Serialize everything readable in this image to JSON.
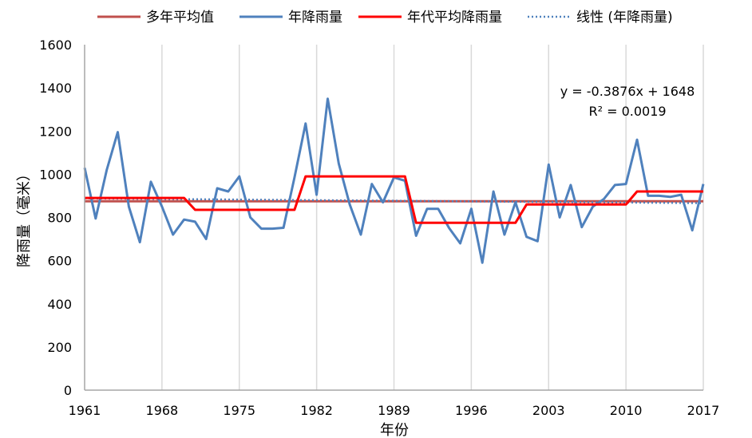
{
  "chart_data": {
    "type": "line",
    "xlabel": "年份",
    "ylabel": "降雨量（毫米）",
    "xlim": [
      1961,
      2017
    ],
    "ylim": [
      0,
      1600
    ],
    "x_ticks": [
      "1961",
      "1968",
      "1975",
      "1982",
      "1989",
      "1996",
      "2003",
      "2010",
      "2017"
    ],
    "y_ticks": [
      "0",
      "200",
      "400",
      "600",
      "800",
      "1000",
      "1200",
      "1400",
      "1600"
    ],
    "grid": "vertical",
    "legend_position": "top",
    "colors": {
      "average": "#C0504D",
      "annual": "#4F81BD",
      "decadal": "#FF0000",
      "trend": "#4F81BD"
    },
    "series": [
      {
        "key": "average",
        "name": "多年平均值",
        "style": "solid",
        "x": [
          1961,
          2017
        ],
        "values": [
          875,
          875
        ]
      },
      {
        "key": "annual",
        "name": "年降雨量",
        "style": "solid",
        "x": [
          1961,
          1962,
          1963,
          1964,
          1965,
          1966,
          1967,
          1968,
          1969,
          1970,
          1971,
          1972,
          1973,
          1974,
          1975,
          1976,
          1977,
          1978,
          1979,
          1980,
          1981,
          1982,
          1983,
          1984,
          1985,
          1986,
          1987,
          1988,
          1989,
          1990,
          1991,
          1992,
          1993,
          1994,
          1995,
          1996,
          1997,
          1998,
          1999,
          2000,
          2001,
          2002,
          2003,
          2004,
          2005,
          2006,
          2007,
          2008,
          2009,
          2010,
          2011,
          2012,
          2013,
          2014,
          2015,
          2016,
          2017
        ],
        "values": [
          1030,
          795,
          1020,
          1195,
          850,
          685,
          965,
          850,
          720,
          790,
          780,
          700,
          935,
          920,
          990,
          800,
          748,
          748,
          752,
          985,
          1235,
          905,
          1350,
          1050,
          860,
          720,
          955,
          870,
          985,
          970,
          715,
          840,
          840,
          750,
          680,
          840,
          590,
          920,
          720,
          870,
          710,
          690,
          1045,
          800,
          950,
          755,
          850,
          885,
          950,
          955,
          1160,
          900,
          900,
          895,
          905,
          740,
          955
        ]
      },
      {
        "key": "decadal",
        "name": "年代平均降雨量",
        "style": "solid",
        "x": [
          1961,
          1970,
          1971,
          1980,
          1981,
          1990,
          1991,
          2000,
          2001,
          2010,
          2011,
          2017
        ],
        "values": [
          890,
          890,
          835,
          835,
          990,
          990,
          775,
          775,
          860,
          860,
          920,
          920
        ]
      },
      {
        "key": "trend",
        "name": "线性 (年降雨量)",
        "style": "dotted",
        "x": [
          1961,
          2017
        ],
        "values": [
          888,
          866
        ]
      }
    ],
    "trendline_label": {
      "equation": "y = -0.3876x + 1648",
      "r_squared": "R² = 0.0019"
    }
  }
}
